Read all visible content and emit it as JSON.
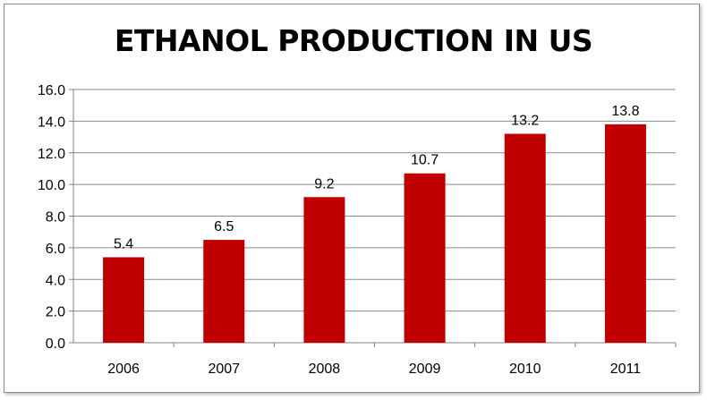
{
  "chart_data": {
    "type": "bar",
    "title": "ETHANOL PRODUCTION IN US",
    "categories": [
      "2006",
      "2007",
      "2008",
      "2009",
      "2010",
      "2011"
    ],
    "values": [
      5.4,
      6.5,
      9.2,
      10.7,
      13.2,
      13.8
    ],
    "data_labels": [
      "5.4",
      "6.5",
      "9.2",
      "10.7",
      "13.2",
      "13.8"
    ],
    "y_ticks": [
      "0.0",
      "2.0",
      "4.0",
      "6.0",
      "8.0",
      "10.0",
      "12.0",
      "14.0",
      "16.0"
    ],
    "ylim": [
      0,
      16
    ],
    "grid": true,
    "legend": "none",
    "bar_color": "#c00000",
    "grid_color": "#8a8a8a"
  }
}
